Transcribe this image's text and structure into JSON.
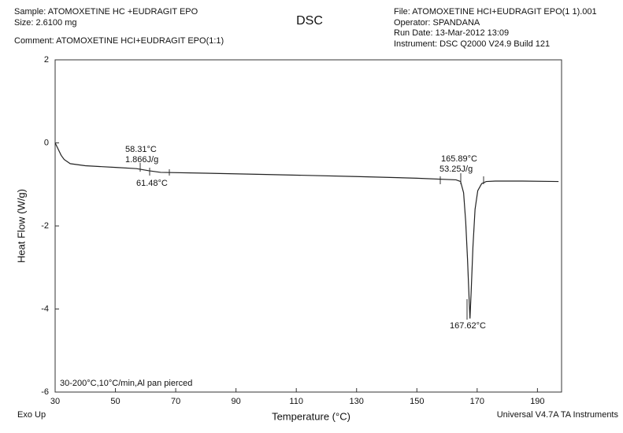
{
  "chart_data": {
    "type": "line",
    "title": "DSC",
    "sample": "Sample: ATOMOXETINE HC +EUDRAGIT EPO",
    "size": "Size:  2.6100 mg",
    "comment": "Comment: ATOMOXETINE HCI+EUDRAGIT EPO(1:1)",
    "file": "File: ATOMOXETINE HCI+EUDRAGIT EPO(1 1).001",
    "operator": "Operator:  SPANDANA",
    "run_date": "Run Date:  13-Mar-2012 13:09",
    "instrument": "Instrument:  DSC Q2000 V24.9 Build 121",
    "x_label": "Temperature (°C)",
    "y_label": "Heat Flow (W/g)",
    "footer_left": "Exo Up",
    "footer_right": "Universal V4.7A TA Instruments",
    "annotations": [
      "58.31°C",
      "1.866J/g",
      "61.48°C",
      "165.89°C",
      "53.25J/g",
      "167.62°C",
      "30-200°C,10°C/min,Al pan pierced"
    ],
    "xlim": [
      30,
      198
    ],
    "ylim": [
      -6,
      2
    ],
    "xticks": [
      30,
      50,
      70,
      90,
      110,
      130,
      150,
      170,
      190
    ],
    "yticks": [
      2,
      0,
      -2,
      -4,
      -6
    ],
    "series": [
      {
        "color": "#222222",
        "x": [
          30,
          31,
          32,
          33,
          35,
          40,
          50,
          57,
          61,
          65,
          80,
          100,
          130,
          150,
          163,
          164.5,
          165.5,
          166.2,
          166.8,
          167.3,
          167.62,
          168.0,
          168.6,
          169.3,
          170.2,
          171.5,
          173,
          176,
          185,
          197
        ],
        "values": [
          0,
          -0.15,
          -0.3,
          -0.4,
          -0.5,
          -0.55,
          -0.59,
          -0.62,
          -0.67,
          -0.71,
          -0.73,
          -0.76,
          -0.81,
          -0.85,
          -0.89,
          -0.93,
          -1.2,
          -1.9,
          -2.8,
          -3.7,
          -4.23,
          -3.6,
          -2.5,
          -1.6,
          -1.15,
          -0.98,
          -0.93,
          -0.92,
          -0.92,
          -0.93
        ]
      }
    ]
  }
}
